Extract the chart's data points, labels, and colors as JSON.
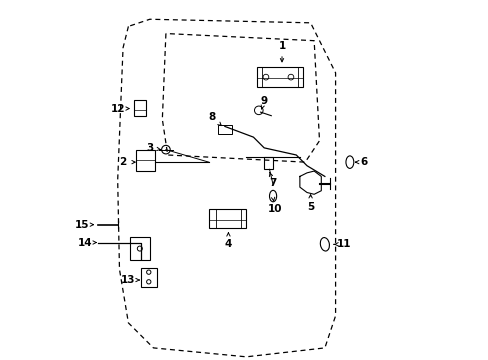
{
  "bg_color": "#ffffff",
  "line_color": "#000000",
  "door_outer_x": [
    1.5,
    1.35,
    1.2,
    1.25,
    1.5,
    2.2,
    4.8,
    7.0,
    7.3,
    7.3,
    6.6,
    2.1,
    1.5
  ],
  "door_outer_y": [
    9.3,
    8.7,
    5.0,
    2.5,
    1.0,
    0.3,
    0.05,
    0.3,
    1.2,
    8.0,
    9.4,
    9.5,
    9.3
  ],
  "window_x": [
    2.55,
    2.45,
    2.6,
    6.45,
    6.85,
    6.7,
    2.55
  ],
  "window_y": [
    9.1,
    6.7,
    5.7,
    5.5,
    6.1,
    8.9,
    9.1
  ],
  "parts_labels": [
    [
      1,
      5.8,
      8.75,
      5.8,
      8.2
    ],
    [
      2,
      1.35,
      5.5,
      1.72,
      5.5
    ],
    [
      3,
      2.1,
      5.9,
      2.42,
      5.85
    ],
    [
      4,
      4.3,
      3.2,
      4.3,
      3.63
    ],
    [
      5,
      6.6,
      4.25,
      6.6,
      4.62
    ],
    [
      6,
      8.1,
      5.5,
      7.83,
      5.5
    ],
    [
      7,
      5.55,
      4.92,
      5.43,
      5.3
    ],
    [
      8,
      3.85,
      6.75,
      4.18,
      6.45
    ],
    [
      9,
      5.3,
      7.2,
      5.22,
      6.97
    ],
    [
      10,
      5.6,
      4.2,
      5.57,
      4.39
    ],
    [
      11,
      7.55,
      3.2,
      7.25,
      3.2
    ],
    [
      12,
      1.2,
      7.0,
      1.63,
      7.0
    ],
    [
      13,
      1.5,
      2.2,
      1.83,
      2.2
    ],
    [
      14,
      0.3,
      3.25,
      0.63,
      3.25
    ],
    [
      15,
      0.2,
      3.75,
      0.63,
      3.75
    ]
  ],
  "label_fontsize": 7.5,
  "xlim": [
    0,
    9.5
  ],
  "ylim": [
    0,
    10
  ]
}
